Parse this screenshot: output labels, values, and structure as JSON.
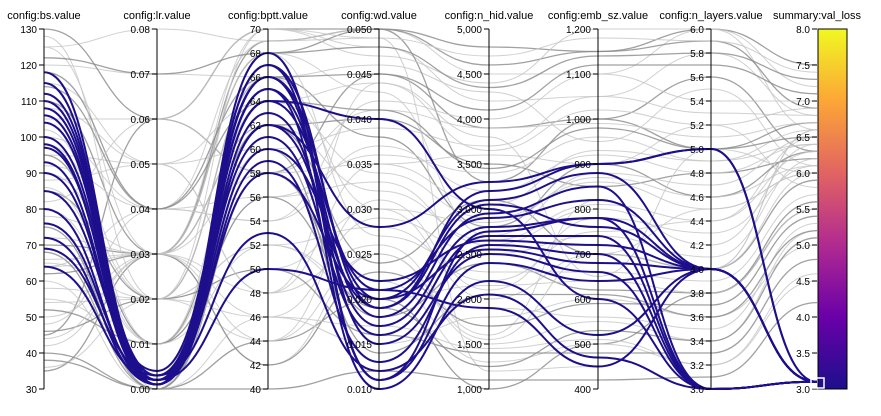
{
  "chart_data": {
    "type": "parallel_coordinates",
    "axes": [
      {
        "label": "config:bs.value",
        "min": 30,
        "max": 130,
        "ticks": [
          "30",
          "40",
          "50",
          "60",
          "70",
          "80",
          "90",
          "100",
          "110",
          "120",
          "130"
        ]
      },
      {
        "label": "config:lr.value",
        "min": 0,
        "max": 0.08,
        "ticks": [
          "0.00",
          "0.01",
          "0.02",
          "0.03",
          "0.04",
          "0.05",
          "0.06",
          "0.07",
          "0.08"
        ]
      },
      {
        "label": "config:bptt.value",
        "min": 40,
        "max": 70,
        "ticks": [
          "40",
          "42",
          "44",
          "46",
          "48",
          "50",
          "52",
          "54",
          "56",
          "58",
          "60",
          "62",
          "64",
          "66",
          "68",
          "70"
        ]
      },
      {
        "label": "config:wd.value",
        "min": 0.01,
        "max": 0.05,
        "ticks": [
          "0.010",
          "0.015",
          "0.020",
          "0.025",
          "0.030",
          "0.035",
          "0.040",
          "0.045",
          "0.050"
        ]
      },
      {
        "label": "config:n_hid.value",
        "min": 1000,
        "max": 5000,
        "ticks": [
          "1,000",
          "1,500",
          "2,000",
          "2,500",
          "3,000",
          "3,500",
          "4,000",
          "4,500",
          "5,000"
        ]
      },
      {
        "label": "config:emb_sz.value",
        "min": 400,
        "max": 1200,
        "ticks": [
          "400",
          "500",
          "600",
          "700",
          "800",
          "900",
          "1,000",
          "1,100",
          "1,200"
        ]
      },
      {
        "label": "config:n_layers.value",
        "min": 3.0,
        "max": 6.0,
        "ticks": [
          "3.0",
          "3.2",
          "3.4",
          "3.6",
          "3.8",
          "4.0",
          "4.2",
          "4.4",
          "4.6",
          "4.8",
          "5.0",
          "5.2",
          "5.4",
          "5.6",
          "5.8",
          "6.0"
        ]
      },
      {
        "label": "summary:val_loss",
        "min": 3.0,
        "max": 8.0,
        "ticks": [
          "3.0",
          "3.5",
          "4.0",
          "4.5",
          "5.0",
          "5.5",
          "6.0",
          "6.5",
          "7.0",
          "7.5",
          "8.0"
        ]
      }
    ],
    "colorbar": {
      "min": 3.0,
      "max": 8.0,
      "colors": [
        "#1d0f8c",
        "#6a00a8",
        "#b12a90",
        "#e16462",
        "#fca636",
        "#f0f921"
      ]
    },
    "highlighted_runs": [
      [
        118,
        0.002,
        67,
        0.019,
        3200,
        900,
        5.0,
        3.1
      ],
      [
        115,
        0.001,
        66,
        0.02,
        3100,
        880,
        4.0,
        3.1
      ],
      [
        112,
        0.003,
        65,
        0.018,
        2950,
        850,
        3.0,
        3.1
      ],
      [
        108,
        0.002,
        64,
        0.021,
        2900,
        820,
        4.0,
        3.1
      ],
      [
        106,
        0.001,
        63,
        0.017,
        2800,
        780,
        3.0,
        3.1
      ],
      [
        104,
        0.002,
        62,
        0.019,
        3050,
        760,
        4.0,
        3.1
      ],
      [
        100,
        0.003,
        61,
        0.016,
        2700,
        740,
        3.0,
        3.1
      ],
      [
        97,
        0.002,
        60,
        0.022,
        2650,
        720,
        4.0,
        3.1
      ],
      [
        93,
        0.001,
        59,
        0.013,
        2600,
        700,
        3.0,
        3.1
      ],
      [
        90,
        0.002,
        58,
        0.02,
        2550,
        680,
        4.0,
        3.1
      ],
      [
        85,
        0.004,
        66,
        0.015,
        2500,
        660,
        3.0,
        3.1
      ],
      [
        80,
        0.001,
        68,
        0.011,
        2400,
        640,
        4.0,
        3.1
      ],
      [
        76,
        0.002,
        64,
        0.04,
        3000,
        600,
        3.0,
        3.1
      ],
      [
        72,
        0.001,
        65,
        0.01,
        2200,
        520,
        4.0,
        3.1
      ],
      [
        69,
        0.003,
        53,
        0.012,
        2050,
        470,
        3.0,
        3.1
      ],
      [
        64,
        0.002,
        50,
        0.021,
        1900,
        450,
        4.0,
        3.1
      ],
      [
        98,
        0.001,
        62,
        0.028,
        3300,
        900,
        5.0,
        3.1
      ],
      [
        110,
        0.002,
        67,
        0.011,
        2750,
        780,
        4.0,
        3.1
      ]
    ],
    "background_runs": [
      [
        35,
        0.03,
        69,
        0.05,
        4800,
        1150,
        6.0,
        7.5
      ],
      [
        64,
        0.03,
        70,
        0.048,
        4200,
        1050,
        5.8,
        6.8
      ],
      [
        125,
        0.08,
        69,
        0.05,
        4500,
        1100,
        6.0,
        6.6
      ],
      [
        45,
        0.06,
        58,
        0.045,
        3900,
        1000,
        5.6,
        6.3
      ],
      [
        120,
        0.07,
        66,
        0.046,
        4300,
        950,
        5.5,
        6.1
      ],
      [
        95,
        0.05,
        48,
        0.035,
        3600,
        900,
        5.2,
        5.8
      ],
      [
        40,
        0.0,
        44,
        0.02,
        1000,
        500,
        3.8,
        5.5
      ],
      [
        64,
        0.04,
        69,
        0.049,
        1200,
        450,
        4.0,
        6.6
      ],
      [
        36,
        0.02,
        50,
        0.03,
        2000,
        700,
        4.5,
        6.0
      ],
      [
        130,
        0.06,
        70,
        0.05,
        4600,
        1150,
        5.9,
        6.9
      ],
      [
        50,
        0.03,
        42,
        0.025,
        1500,
        550,
        3.4,
        5.2
      ],
      [
        80,
        0.01,
        56,
        0.033,
        2600,
        800,
        4.2,
        6.4
      ],
      [
        110,
        0.03,
        62,
        0.04,
        3500,
        850,
        4.8,
        6.2
      ],
      [
        60,
        0.0,
        46,
        0.015,
        1800,
        600,
        3.6,
        5.0
      ],
      [
        90,
        0.02,
        52,
        0.028,
        2200,
        750,
        4.4,
        6.5
      ],
      [
        70,
        0.03,
        68,
        0.05,
        3300,
        1000,
        5.0,
        6.7
      ],
      [
        100,
        0.04,
        54,
        0.042,
        4000,
        1100,
        5.4,
        7.0
      ],
      [
        55,
        0.01,
        60,
        0.022,
        1300,
        500,
        3.2,
        4.5
      ],
      [
        85,
        0.02,
        66,
        0.038,
        2800,
        900,
        4.6,
        6.3
      ],
      [
        115,
        0.05,
        64,
        0.044,
        3800,
        650,
        5.0,
        6.0
      ],
      [
        42,
        0.03,
        48,
        0.026,
        1600,
        820,
        4.0,
        6.6
      ],
      [
        75,
        0.0,
        58,
        0.018,
        2400,
        620,
        3.8,
        5.6
      ],
      [
        105,
        0.06,
        70,
        0.047,
        4400,
        1200,
        6.0,
        7.2
      ],
      [
        65,
        0.02,
        44,
        0.031,
        2100,
        780,
        4.3,
        6.1
      ],
      [
        95,
        0.01,
        62,
        0.024,
        3100,
        700,
        4.0,
        5.9
      ],
      [
        48,
        0.04,
        56,
        0.036,
        3400,
        960,
        4.9,
        6.4
      ],
      [
        125,
        0.03,
        68,
        0.043,
        2700,
        880,
        4.7,
        6.5
      ],
      [
        38,
        0.0,
        40,
        0.012,
        1100,
        420,
        3.1,
        4.2
      ],
      [
        88,
        0.05,
        60,
        0.039,
        3700,
        1050,
        5.3,
        6.8
      ],
      [
        58,
        0.02,
        52,
        0.021,
        1900,
        560,
        3.5,
        5.3
      ],
      [
        118,
        0.04,
        66,
        0.045,
        4100,
        1120,
        5.7,
        7.1
      ],
      [
        72,
        0.03,
        46,
        0.029,
        2500,
        740,
        4.1,
        6.2
      ],
      [
        102,
        0.01,
        64,
        0.034,
        2900,
        860,
        4.5,
        6.0
      ],
      [
        46,
        0.02,
        50,
        0.016,
        1400,
        480,
        3.3,
        4.8
      ],
      [
        82,
        0.06,
        58,
        0.041,
        3900,
        990,
        5.1,
        6.7
      ],
      [
        112,
        0.0,
        68,
        0.027,
        2300,
        660,
        3.9,
        5.7
      ],
      [
        62,
        0.03,
        42,
        0.023,
        1700,
        590,
        3.7,
        5.4
      ],
      [
        92,
        0.04,
        54,
        0.037,
        3200,
        920,
        4.8,
        6.4
      ],
      [
        128,
        0.02,
        70,
        0.049,
        4700,
        1180,
        5.9,
        7.4
      ],
      [
        52,
        0.01,
        56,
        0.019,
        1250,
        530,
        3.4,
        5.1
      ],
      [
        78,
        0.03,
        62,
        0.032,
        2650,
        810,
        4.4,
        6.3
      ],
      [
        108,
        0.05,
        48,
        0.044,
        3650,
        1020,
        5.2,
        6.9
      ],
      [
        68,
        0.0,
        60,
        0.014,
        2050,
        610,
        3.6,
        5.2
      ],
      [
        98,
        0.02,
        66,
        0.03,
        2850,
        870,
        4.6,
        6.1
      ],
      [
        44,
        0.03,
        44,
        0.025,
        1550,
        700,
        4.0,
        6.0
      ],
      [
        122,
        0.07,
        68,
        0.048,
        4350,
        1140,
        5.8,
        7.3
      ],
      [
        86,
        0.01,
        52,
        0.02,
        2150,
        640,
        3.8,
        5.5
      ],
      [
        66,
        0.03,
        58,
        0.035,
        3050,
        930,
        4.9,
        6.6
      ],
      [
        114,
        0.04,
        64,
        0.041,
        3450,
        980,
        5.0,
        6.5
      ],
      [
        54,
        0.02,
        46,
        0.017,
        1450,
        510,
        3.2,
        4.6
      ]
    ]
  }
}
